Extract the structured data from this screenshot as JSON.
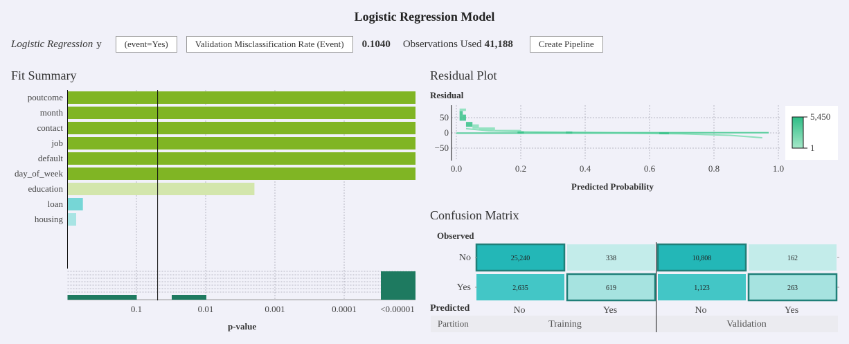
{
  "title": "Logistic Regression Model",
  "toolbar": {
    "model_label": "Logistic Regression",
    "target": "y",
    "event_button": "(event=Yes)",
    "metric_button": "Validation Misclassification Rate (Event)",
    "metric_value": "0.1040",
    "obs_label": "Observations Used",
    "obs_value": "41,188",
    "pipeline_button": "Create Pipeline"
  },
  "fit_summary": {
    "title": "Fit Summary",
    "xlabel": "p-value",
    "tick_labels": [
      "0.1",
      "0.01",
      "0.001",
      "0.0001",
      "<0.00001"
    ]
  },
  "residual_plot": {
    "title": "Residual Plot",
    "ylabel": "Residual",
    "xlabel": "Predicted Probability",
    "legend_max": "5,450",
    "legend_min": "1"
  },
  "confusion_matrix": {
    "title": "Confusion Matrix",
    "observed_label": "Observed",
    "predicted_label": "Predicted",
    "partition_label": "Partition",
    "row_labels": [
      "No",
      "Yes"
    ],
    "col_labels": [
      "No",
      "Yes",
      "No",
      "Yes"
    ],
    "partitions": [
      "Training",
      "Validation"
    ]
  },
  "chart_data": [
    {
      "type": "bar",
      "orientation": "horizontal",
      "title": "Fit Summary",
      "xlabel": "p-value",
      "x_scale": "log-reversed",
      "x_ticks": [
        "0.1",
        "0.01",
        "0.001",
        "0.0001",
        "<0.00001"
      ],
      "categories": [
        "poutcome",
        "month",
        "contact",
        "job",
        "default",
        "day_of_week",
        "education",
        "loan",
        "housing"
      ],
      "values": [
        "<0.00001",
        "<0.00001",
        "<0.00001",
        "<0.00001",
        "<0.00001",
        "<0.00001",
        0.002,
        0.6,
        0.75
      ],
      "colors": [
        "#80b524",
        "#80b524",
        "#80b524",
        "#80b524",
        "#80b524",
        "#80b524",
        "#d3e6ac",
        "#76d6d6",
        "#a8e4e4"
      ],
      "reference_line": 0.05,
      "histogram_colors": [
        "#1e7a60"
      ]
    },
    {
      "type": "heatmap",
      "title": "Residual Plot",
      "xlabel": "Predicted Probability",
      "ylabel": "Residual",
      "xlim": [
        0,
        1
      ],
      "x_ticks": [
        0.0,
        0.2,
        0.4,
        0.6,
        0.8,
        1.0
      ],
      "y_ticks": [
        50,
        0,
        -50
      ],
      "color_range": [
        1,
        5450
      ],
      "colors": [
        "#40c48e",
        "#8be0bb"
      ]
    },
    {
      "type": "table",
      "title": "Confusion Matrix",
      "row_axis": "Predicted",
      "col_axis": "Observed",
      "partitions": [
        {
          "name": "Training",
          "rows": [
            "No",
            "Yes"
          ],
          "cols": [
            "No",
            "Yes"
          ],
          "values": [
            [
              25240,
              338
            ],
            [
              2635,
              619
            ]
          ],
          "display": [
            [
              "25,240",
              "338"
            ],
            [
              "2,635",
              "619"
            ]
          ]
        },
        {
          "name": "Validation",
          "rows": [
            "No",
            "Yes"
          ],
          "cols": [
            "No",
            "Yes"
          ],
          "values": [
            [
              10808,
              162
            ],
            [
              1123,
              263
            ]
          ],
          "display": [
            [
              "10,808",
              "162"
            ],
            [
              "1,123",
              "263"
            ]
          ]
        }
      ],
      "colors": [
        "#23b7b7",
        "#3ec4c4",
        "#c3ecea",
        "#a6e3e0"
      ]
    }
  ]
}
